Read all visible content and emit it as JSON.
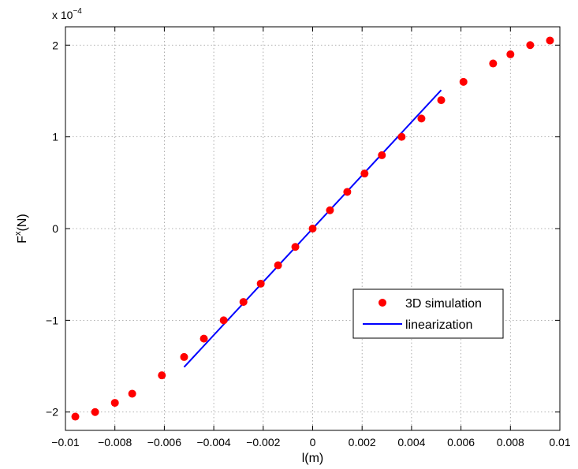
{
  "chart_data": {
    "type": "scatter",
    "title": "",
    "xlabel": "l(m)",
    "ylabel_base": "F",
    "ylabel_sup": "x",
    "ylabel_unit": "(N)",
    "xlim": [
      -0.01,
      0.01
    ],
    "ylim": [
      -2.2,
      2.2
    ],
    "y_multiplier": {
      "base": "x 10",
      "exponent": "−4"
    },
    "grid": true,
    "x_ticks": [
      -0.01,
      -0.008,
      -0.006,
      -0.004,
      -0.002,
      0,
      0.002,
      0.004,
      0.006,
      0.008,
      0.01
    ],
    "x_tick_labels": [
      "−0.01",
      "−0.008",
      "−0.006",
      "−0.004",
      "−0.002",
      "0",
      "0.002",
      "0.004",
      "0.006",
      "0.008",
      "0.01"
    ],
    "y_ticks": [
      -2,
      -1,
      0,
      1,
      2
    ],
    "y_tick_labels": [
      "−2",
      "−1",
      "0",
      "1",
      "2"
    ],
    "legend_position": "inside-right",
    "series": [
      {
        "name": "3D simulation",
        "kind": "scatter",
        "color": "#ff0000",
        "x": [
          -0.0096,
          -0.0088,
          -0.008,
          -0.0073,
          -0.0061,
          -0.0052,
          -0.0044,
          -0.0036,
          -0.0028,
          -0.0021,
          -0.0014,
          -0.0007,
          0,
          0.0007,
          0.0014,
          0.0021,
          0.0028,
          0.0036,
          0.0044,
          0.0052,
          0.0061,
          0.0073,
          0.008,
          0.0088,
          0.0096
        ],
        "y": [
          -2.05,
          -2.0,
          -1.9,
          -1.8,
          -1.6,
          -1.4,
          -1.2,
          -1.0,
          -0.8,
          -0.6,
          -0.4,
          -0.2,
          0,
          0.2,
          0.4,
          0.6,
          0.8,
          1.0,
          1.2,
          1.4,
          1.6,
          1.8,
          1.9,
          2.0,
          2.05
        ]
      },
      {
        "name": "linearization",
        "kind": "line",
        "color": "#0000ff",
        "x": [
          -0.0052,
          0.0052
        ],
        "y": [
          -1.51,
          1.51
        ]
      }
    ]
  }
}
